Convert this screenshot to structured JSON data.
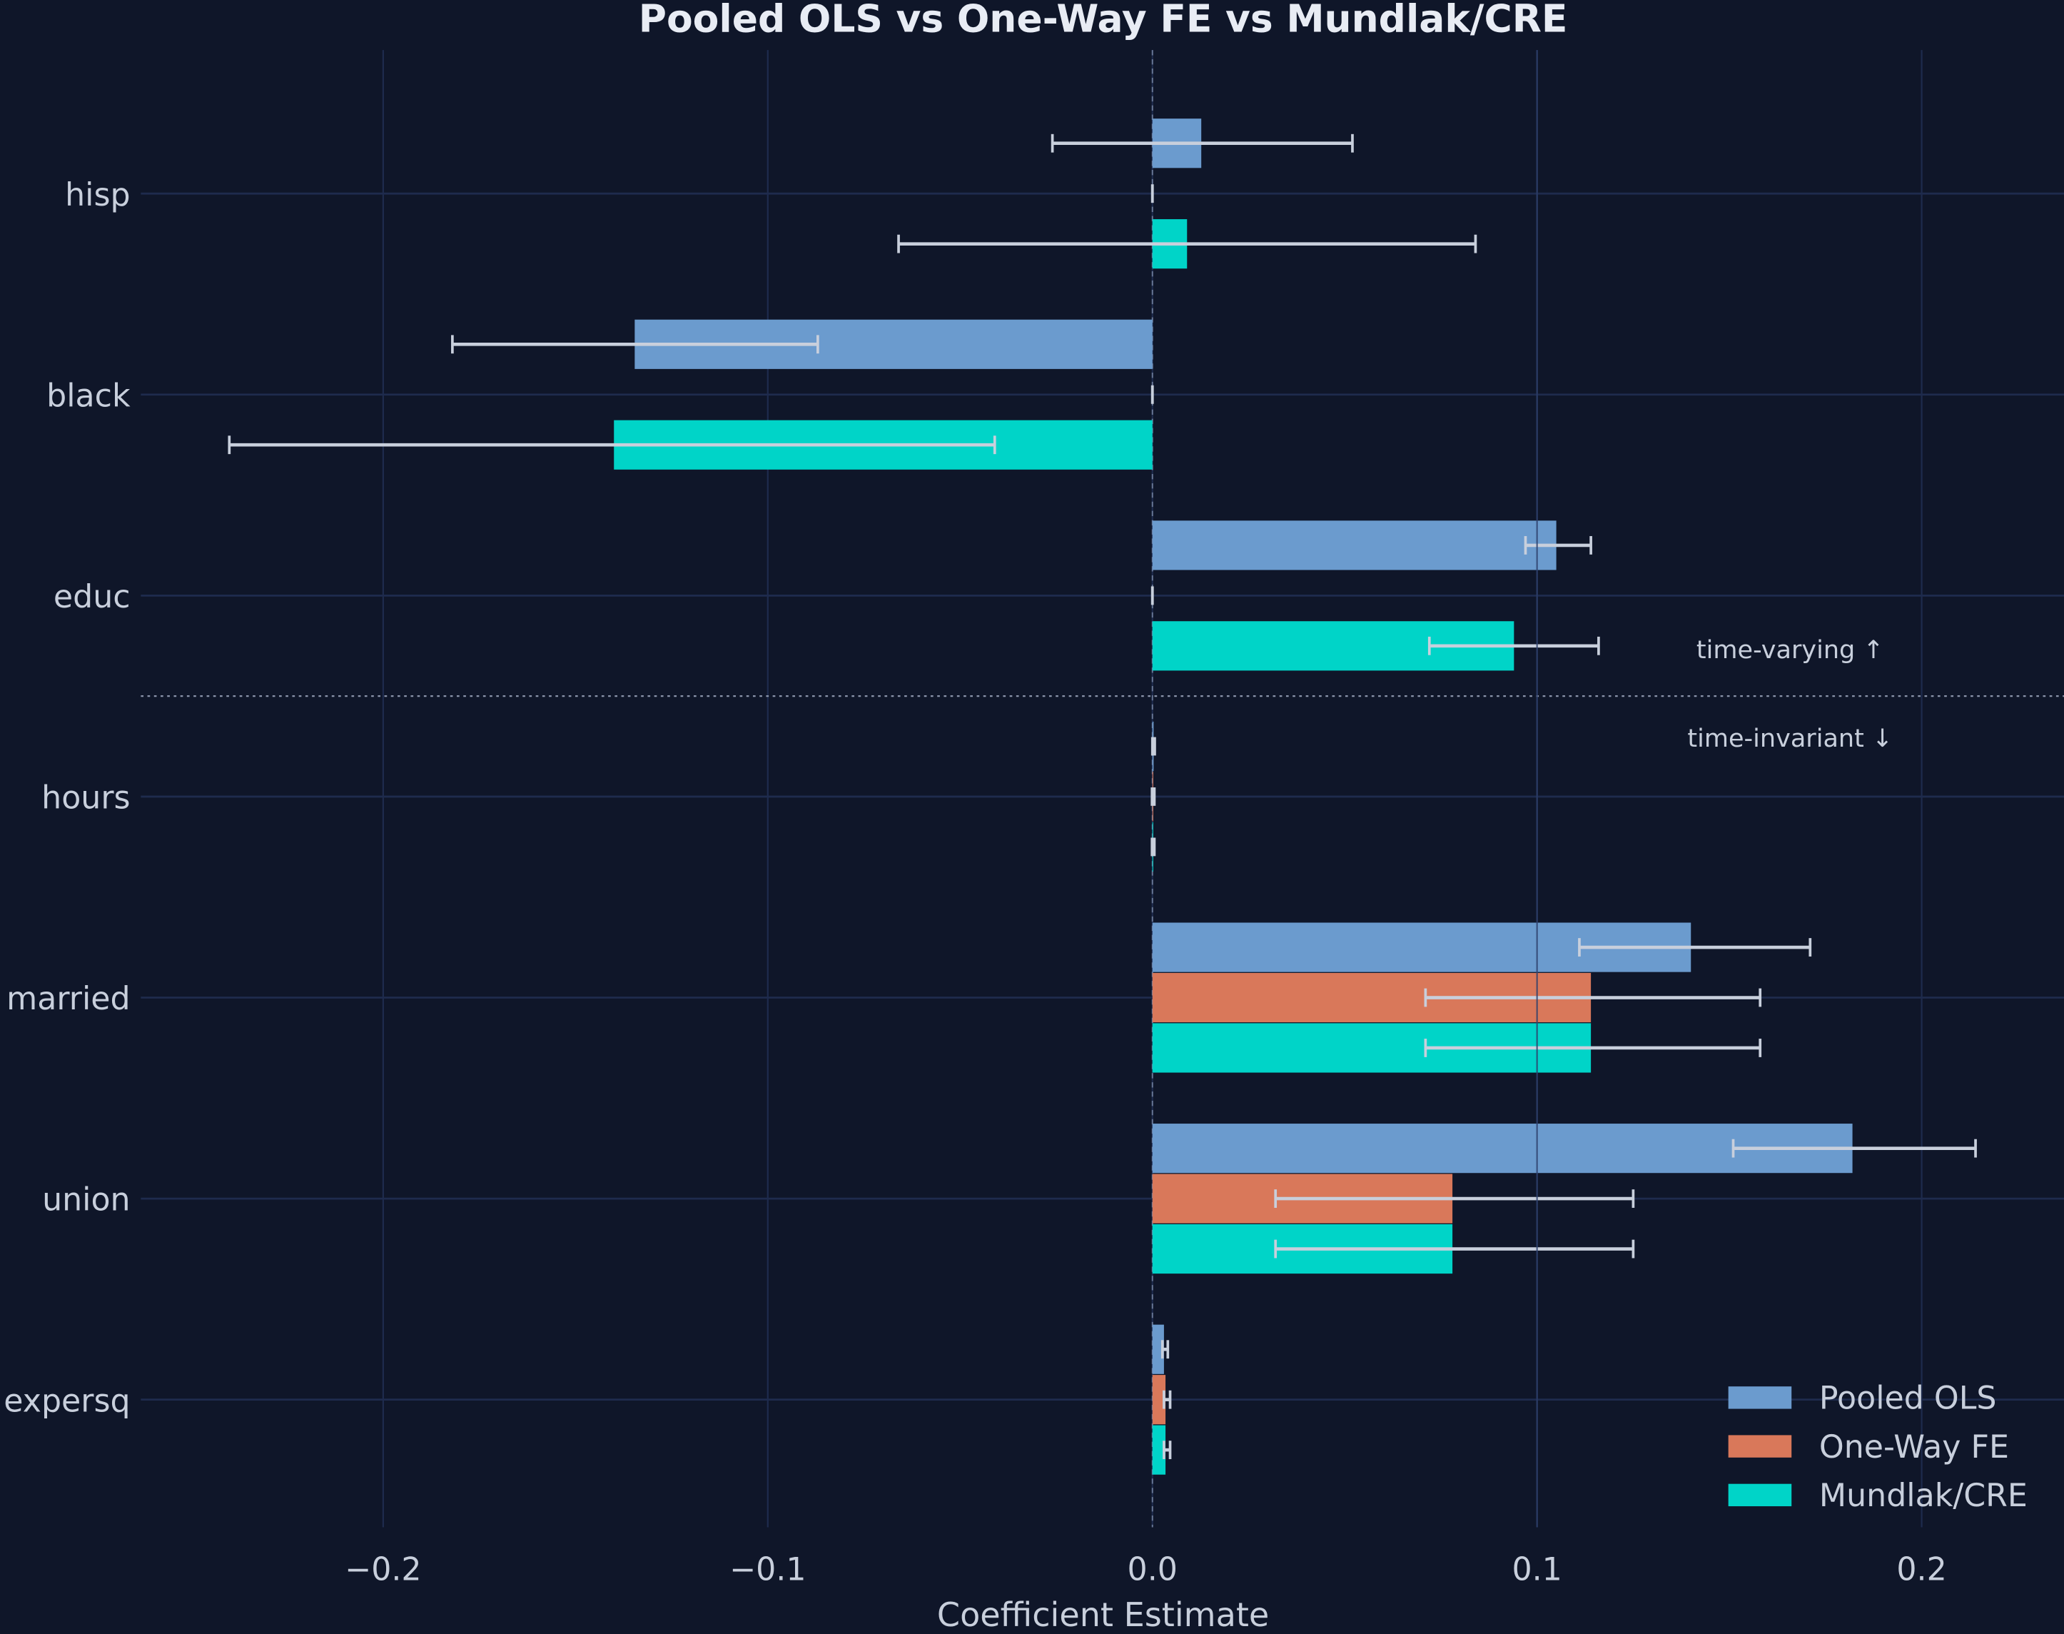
{
  "chart_data": {
    "type": "bar",
    "orientation": "horizontal",
    "title": "Pooled OLS vs One-Way FE vs Mundlak/CRE",
    "xlabel": "Coefficient Estimate",
    "ylabel": "",
    "xlim": [
      -0.263,
      0.237
    ],
    "xticks": [
      -0.2,
      -0.1,
      0.0,
      0.1,
      0.2
    ],
    "xtick_labels": [
      "−0.2",
      "−0.1",
      "0.0",
      "0.1",
      "0.2"
    ],
    "grid": true,
    "legend_position": "bottom-right",
    "categories": [
      "hisp",
      "black",
      "educ",
      "hours",
      "married",
      "union",
      "expersq"
    ],
    "series": [
      {
        "name": "Pooled OLS",
        "color": "#6b9bce",
        "values": [
          0.0127,
          -0.1346,
          0.105,
          0.0003,
          0.14,
          0.182,
          0.003
        ],
        "ci_low": [
          -0.026,
          -0.182,
          0.097,
          0.0,
          0.111,
          0.151,
          0.0026
        ],
        "ci_high": [
          0.052,
          -0.087,
          0.114,
          0.0006,
          0.171,
          0.214,
          0.004
        ]
      },
      {
        "name": "One-Way FE",
        "color": "#d9785a",
        "values": [
          0,
          0,
          0,
          0.0002,
          0.114,
          0.078,
          0.0034
        ],
        "ci_low": [
          0,
          0,
          0,
          -0.0001,
          0.071,
          0.032,
          0.003
        ],
        "ci_high": [
          0,
          0,
          0,
          0.0005,
          0.158,
          0.125,
          0.0046
        ]
      },
      {
        "name": "Mundlak/CRE",
        "color": "#00d4c8",
        "values": [
          0.009,
          -0.14,
          0.094,
          0.0002,
          0.114,
          0.078,
          0.0034
        ],
        "ci_low": [
          -0.066,
          -0.24,
          0.072,
          -0.0001,
          0.071,
          0.032,
          0.003
        ],
        "ci_high": [
          0.084,
          -0.041,
          0.116,
          0.0005,
          0.158,
          0.125,
          0.0046
        ]
      }
    ],
    "annotations": [
      "time-varying ↑",
      "time-invariant ↓"
    ],
    "separator_between": [
      "educ",
      "hours"
    ]
  },
  "colors": {
    "background": "#0f1629",
    "grid": "#1e2b4d",
    "text": "#c8cfdc",
    "errorbar": "#c8cfdc"
  }
}
